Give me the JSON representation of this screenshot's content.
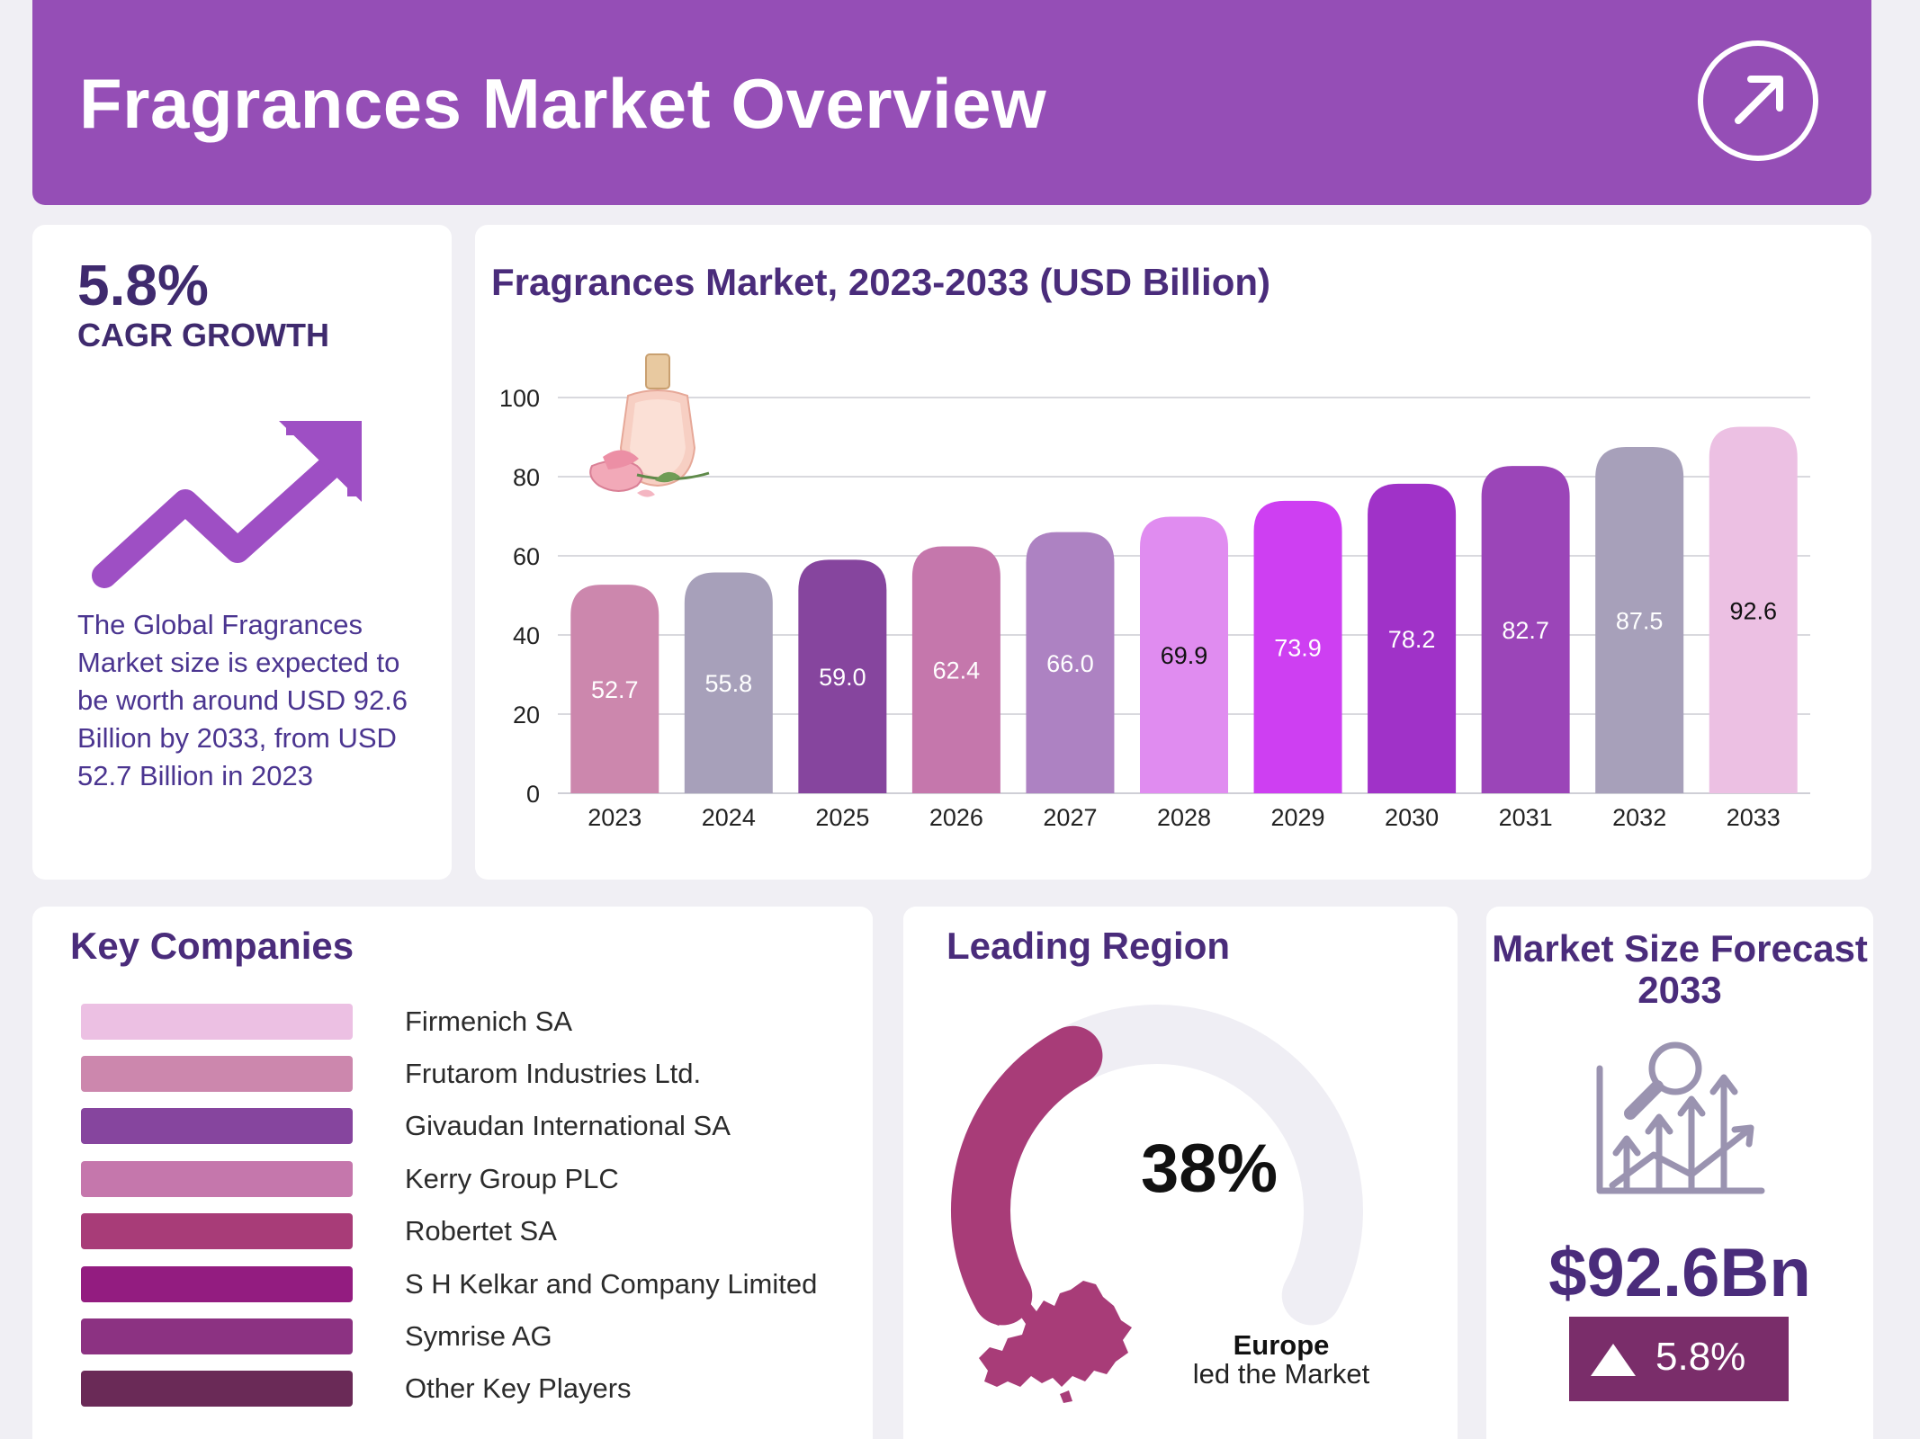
{
  "header": {
    "title": "Fragrances Market Overview",
    "action_icon": "arrow-up-right-icon"
  },
  "cagr": {
    "value": "5.8%",
    "label": "CAGR GROWTH",
    "icon": "trend-up-arrow-icon",
    "description": "The Global Fragrances Market size is expected to be worth around USD 92.6 Billion by 2033, from USD 52.7 Billion in 2023"
  },
  "chart_data": {
    "type": "bar",
    "title": "Fragrances Market, 2023-2033 (USD Billion)",
    "xlabel": "",
    "ylabel": "",
    "categories": [
      "2023",
      "2024",
      "2025",
      "2026",
      "2027",
      "2028",
      "2029",
      "2030",
      "2031",
      "2032",
      "2033"
    ],
    "values": [
      52.7,
      55.8,
      59.0,
      62.4,
      66.0,
      69.9,
      73.9,
      78.2,
      82.7,
      87.5,
      92.6
    ],
    "value_labels": [
      "52.7",
      "55.8",
      "59.0",
      "62.4",
      "66.0",
      "69.9",
      "73.9",
      "78.2",
      "82.7",
      "87.5",
      "92.6"
    ],
    "colors": [
      "#cc87ad",
      "#a7a0ba",
      "#86459e",
      "#c577ac",
      "#ad82c2",
      "#e08cf0",
      "#ce3ff2",
      "#a032c8",
      "#9b45b8",
      "#a7a0ba",
      "#ecc0e3"
    ],
    "label_colors": [
      "#ffffff",
      "#ffffff",
      "#ffffff",
      "#ffffff",
      "#ffffff",
      "#111111",
      "#ffffff",
      "#ffffff",
      "#ffffff",
      "#ffffff",
      "#111111"
    ],
    "yticks": [
      "0",
      "20",
      "40",
      "60",
      "80",
      "100"
    ],
    "ylim": [
      0,
      100
    ],
    "grid": true,
    "decoration_icon": "perfume-bottle-rose-icon"
  },
  "companies": {
    "title": "Key Companies",
    "items": [
      {
        "name": "Firmenich SA",
        "color": "#ecc0e3"
      },
      {
        "name": "Frutarom Industries Ltd.",
        "color": "#cc87ad"
      },
      {
        "name": "Givaudan International SA",
        "color": "#86459e"
      },
      {
        "name": "Kerry Group PLC",
        "color": "#c577ac"
      },
      {
        "name": "Robertet SA",
        "color": "#a83c78"
      },
      {
        "name": "S H Kelkar and Company Limited",
        "color": "#931c80"
      },
      {
        "name": "Symrise AG",
        "color": "#8c3282"
      },
      {
        "name": "Other Key Players",
        "color": "#6a2a57"
      }
    ]
  },
  "region": {
    "title": "Leading Region",
    "share": 38,
    "share_label": "38%",
    "region_name": "Europe",
    "region_sub": "led the Market",
    "icon": "europe-map-icon",
    "gauge_color": "#a83c78",
    "track_color": "#efeef4"
  },
  "forecast": {
    "title": "Market Size Forecast 2033",
    "value": "$92.6Bn",
    "badge": "5.8%",
    "icon": "market-growth-analysis-icon",
    "badge_icon": "triangle-up-icon"
  }
}
